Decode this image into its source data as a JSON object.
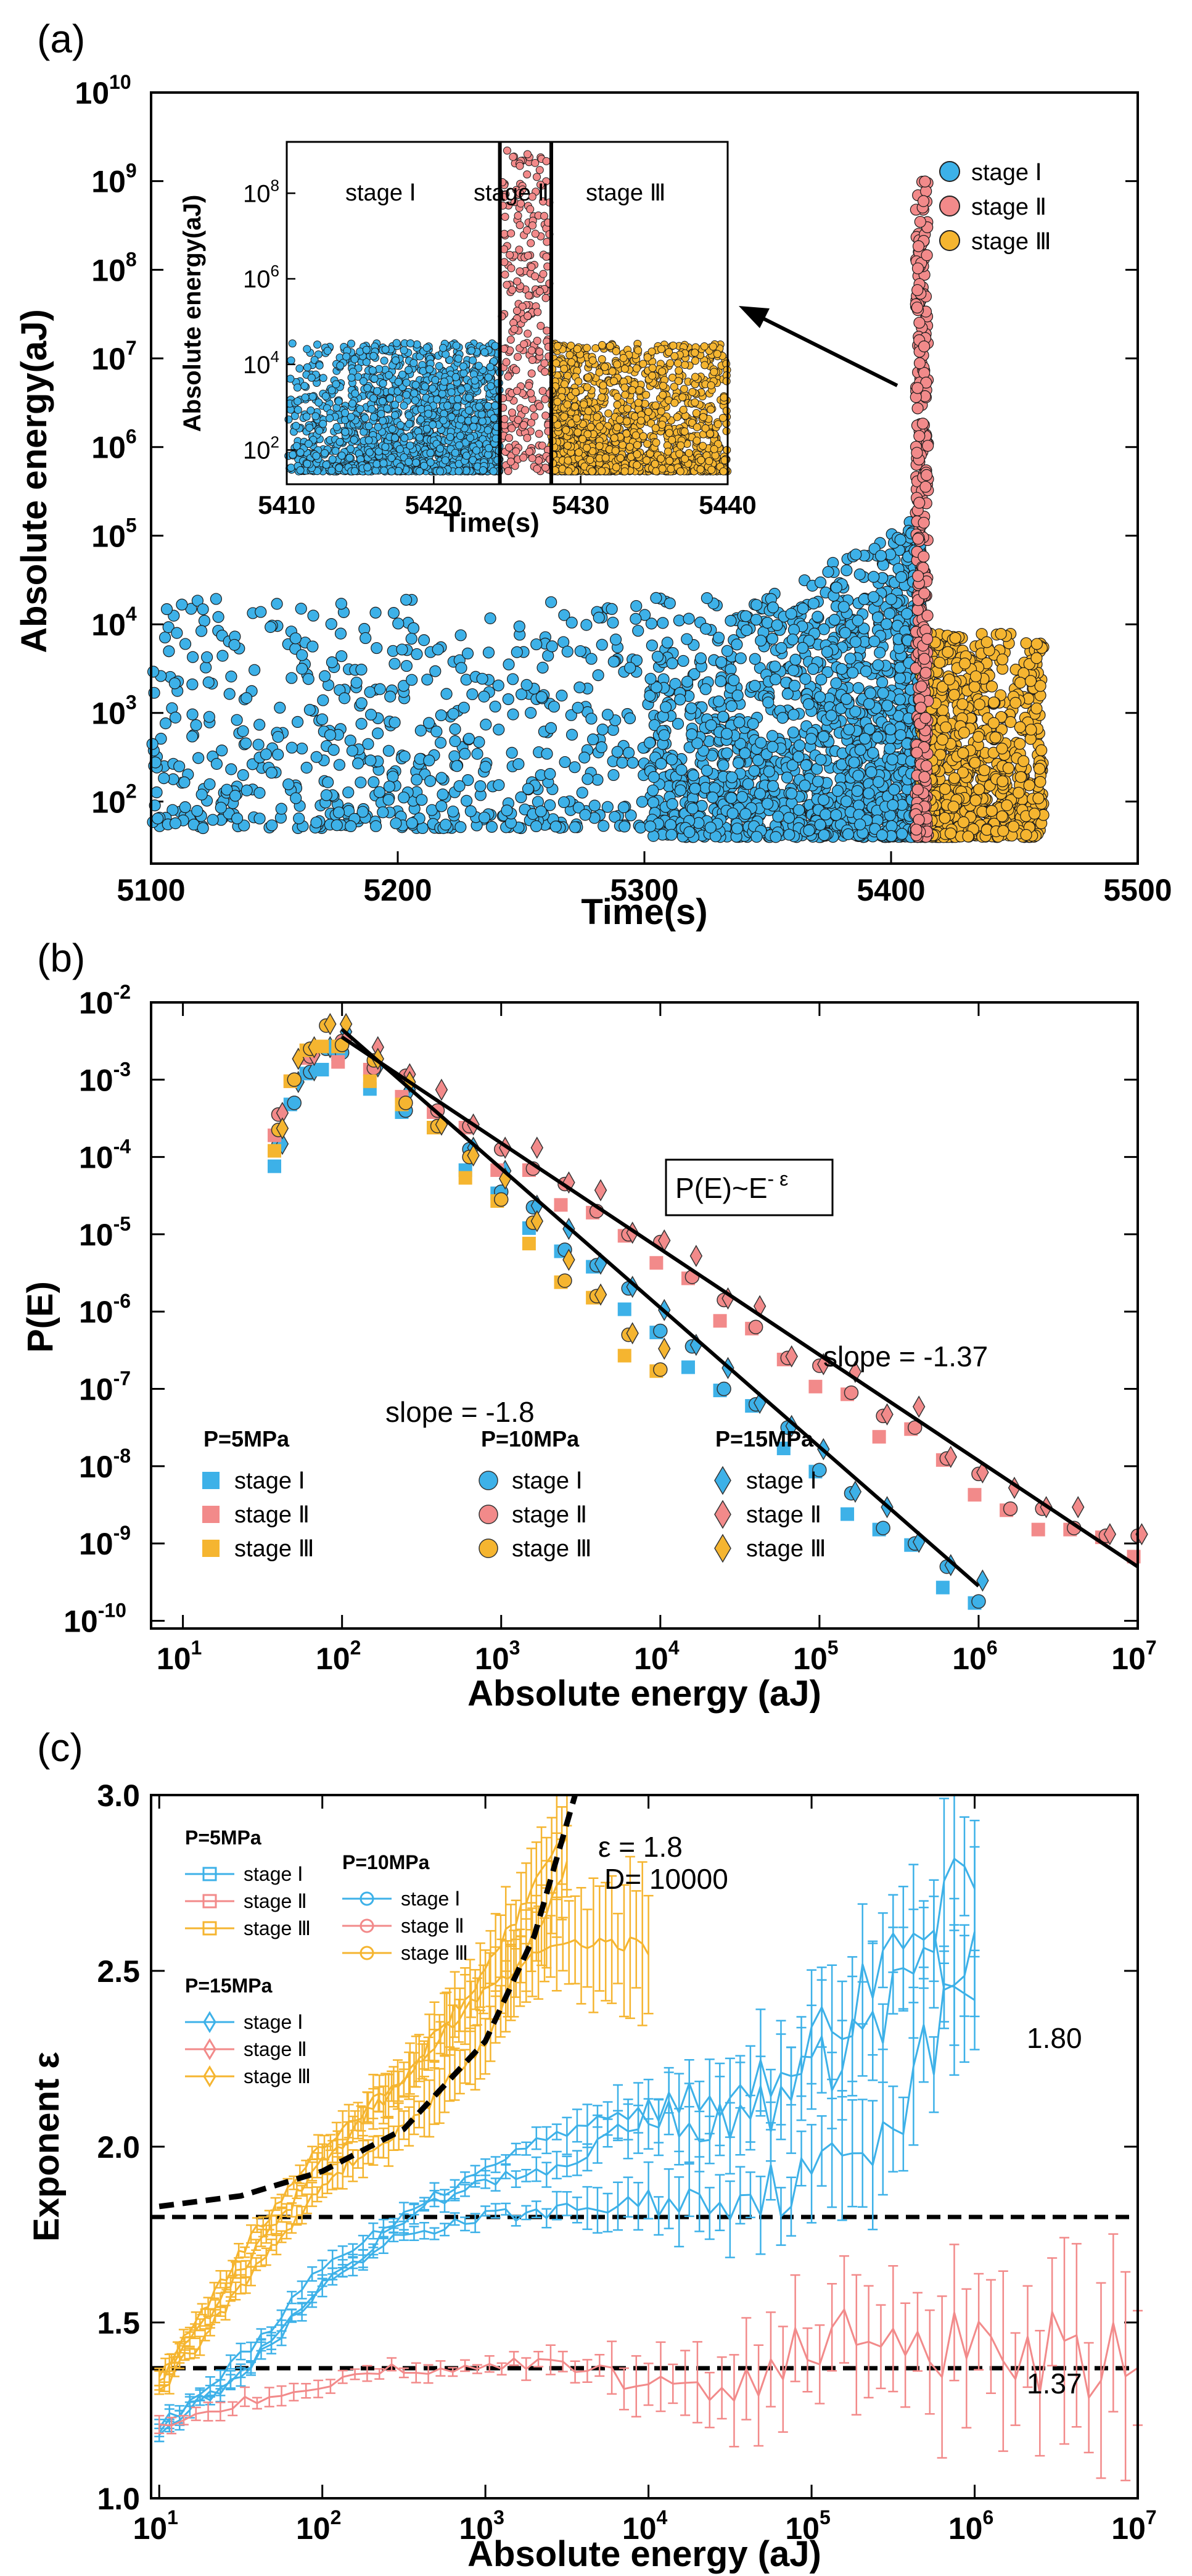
{
  "chart_data": [
    {
      "panel": "(a)",
      "type": "scatter",
      "xlabel": "Time(s)",
      "ylabel": "Absolute energy(aJ)",
      "xlim": [
        5100,
        5500
      ],
      "ylim_log10": [
        1.3,
        10
      ],
      "yscale": "log",
      "x_ticks": [
        "5100",
        "5200",
        "5300",
        "5400",
        "5500"
      ],
      "y_ticks": [
        {
          "base": "10",
          "exp": "2"
        },
        {
          "base": "10",
          "exp": "3"
        },
        {
          "base": "10",
          "exp": "4"
        },
        {
          "base": "10",
          "exp": "5"
        },
        {
          "base": "10",
          "exp": "6"
        },
        {
          "base": "10",
          "exp": "7"
        },
        {
          "base": "10",
          "exp": "8"
        },
        {
          "base": "10",
          "exp": "9"
        },
        {
          "base": "10",
          "exp": "10"
        }
      ],
      "legend": [
        {
          "label": "stage Ⅰ",
          "color": "#3db1e8"
        },
        {
          "label": "stage Ⅱ",
          "color": "#f28a8a"
        },
        {
          "label": "stage Ⅲ",
          "color": "#f5b530"
        }
      ],
      "series": [
        {
          "name": "stage Ⅰ",
          "x_range": [
            5100,
            5412
          ],
          "logE_range": [
            1.6,
            5.3
          ],
          "dense_near": 5405
        },
        {
          "name": "stage Ⅱ",
          "x_range": [
            5410,
            5415
          ],
          "logE_range": [
            1.6,
            9.0
          ]
        },
        {
          "name": "stage Ⅲ",
          "x_range": [
            5412,
            5462
          ],
          "logE_range": [
            1.6,
            4.0
          ]
        }
      ],
      "inset": {
        "xlabel": "Time(s)",
        "ylabel": "Absolute energy(aJ)",
        "xlim": [
          5410,
          5440
        ],
        "ylim_log10": [
          1.2,
          9.2
        ],
        "x_ticks": [
          "5410",
          "5420",
          "5430",
          "5440"
        ],
        "y_ticks": [
          {
            "base": "10",
            "exp": "2"
          },
          {
            "base": "10",
            "exp": "4"
          },
          {
            "base": "10",
            "exp": "6"
          },
          {
            "base": "10",
            "exp": "8"
          }
        ],
        "stage_labels": [
          "stage Ⅰ",
          "stage Ⅱ",
          "stage Ⅲ"
        ],
        "boundaries": [
          5424.5,
          5428
        ]
      }
    },
    {
      "panel": "(b)",
      "type": "scatter",
      "xlabel": "Absolute energy (aJ)",
      "ylabel": "P(E)",
      "xscale": "log",
      "yscale": "log",
      "xlim_log10": [
        0.8,
        7
      ],
      "ylim_log10": [
        -10.1,
        -2
      ],
      "x_ticks": [
        {
          "base": "10",
          "exp": "1"
        },
        {
          "base": "10",
          "exp": "2"
        },
        {
          "base": "10",
          "exp": "3"
        },
        {
          "base": "10",
          "exp": "4"
        },
        {
          "base": "10",
          "exp": "5"
        },
        {
          "base": "10",
          "exp": "6"
        },
        {
          "base": "10",
          "exp": "7"
        }
      ],
      "y_ticks": [
        {
          "base": "10",
          "exp": "-10"
        },
        {
          "base": "10",
          "exp": "-9"
        },
        {
          "base": "10",
          "exp": "-8"
        },
        {
          "base": "10",
          "exp": "-7"
        },
        {
          "base": "10",
          "exp": "-6"
        },
        {
          "base": "10",
          "exp": "-5"
        },
        {
          "base": "10",
          "exp": "-4"
        },
        {
          "base": "10",
          "exp": "-3"
        },
        {
          "base": "10",
          "exp": "-2"
        }
      ],
      "formula_base": "P(E)~E",
      "formula_exp": "- ε",
      "annotations": [
        "slope = -1.8",
        "slope = -1.37"
      ],
      "fit_lines": [
        {
          "slope": -1.8,
          "x_log10": [
            2,
            6
          ],
          "y_log10": [
            -2.35,
            -9.55
          ]
        },
        {
          "slope": -1.37,
          "x_log10": [
            2,
            7
          ],
          "y_log10": [
            -2.45,
            -9.3
          ]
        }
      ],
      "legend_groups": [
        {
          "title": "P=5MPa",
          "marker": "square",
          "items": [
            "stage Ⅰ",
            "stage Ⅱ",
            "stage Ⅲ"
          ]
        },
        {
          "title": "P=10MPa",
          "marker": "circle",
          "items": [
            "stage Ⅰ",
            "stage Ⅱ",
            "stage Ⅲ"
          ]
        },
        {
          "title": "P=15MPa",
          "marker": "diamond",
          "items": [
            "stage Ⅰ",
            "stage Ⅱ",
            "stage Ⅲ"
          ]
        }
      ],
      "stage_colors": [
        "#3db1e8",
        "#f28a8a",
        "#f5b530"
      ],
      "series": [
        {
          "name": "stage Ⅰ",
          "logE": [
            1.6,
            1.7,
            1.8,
            1.9,
            2.0,
            2.2,
            2.4,
            2.6,
            2.8,
            3.0,
            3.2,
            3.4,
            3.6,
            3.8,
            4.0,
            4.2,
            4.4,
            4.6,
            4.8,
            5.0,
            5.2,
            5.4,
            5.6,
            5.8,
            6.0
          ],
          "logP": [
            -3.9,
            -3.2,
            -2.9,
            -2.7,
            -2.6,
            -2.9,
            -3.3,
            -3.6,
            -4.0,
            -4.4,
            -4.7,
            -5.1,
            -5.4,
            -5.8,
            -6.2,
            -6.5,
            -6.9,
            -7.2,
            -7.6,
            -8.0,
            -8.4,
            -8.7,
            -9.0,
            -9.4,
            -9.7
          ]
        },
        {
          "name": "stage Ⅱ",
          "logE": [
            1.6,
            1.7,
            1.8,
            2.0,
            2.2,
            2.4,
            2.6,
            2.8,
            3.0,
            3.2,
            3.4,
            3.6,
            3.8,
            4.0,
            4.2,
            4.4,
            4.6,
            4.8,
            5.0,
            5.2,
            5.4,
            5.6,
            5.8,
            6.0,
            6.2,
            6.4,
            6.6,
            6.8,
            7.0
          ],
          "logP": [
            -3.5,
            -2.9,
            -2.7,
            -2.6,
            -2.8,
            -3.0,
            -3.3,
            -3.6,
            -4.0,
            -4.1,
            -4.4,
            -4.6,
            -5.0,
            -5.2,
            -5.5,
            -5.9,
            -6.1,
            -6.6,
            -6.8,
            -7.0,
            -7.4,
            -7.4,
            -7.9,
            -8.2,
            -8.5,
            -8.6,
            -8.7,
            -8.9,
            -9.0
          ]
        },
        {
          "name": "stage Ⅲ",
          "logE": [
            1.6,
            1.7,
            1.8,
            1.9,
            2.0,
            2.2,
            2.4,
            2.6,
            2.8,
            3.0,
            3.2,
            3.4,
            3.6,
            3.8,
            4.0
          ],
          "logP": [
            -3.7,
            -2.9,
            -2.6,
            -2.4,
            -2.5,
            -2.8,
            -3.2,
            -3.6,
            -4.1,
            -4.5,
            -4.9,
            -5.5,
            -5.8,
            -6.4,
            -6.7
          ]
        }
      ]
    },
    {
      "panel": "(c)",
      "type": "line",
      "xlabel": "Absolute energy (aJ)",
      "ylabel": "Exponent ε",
      "xscale": "log",
      "xlim_log10": [
        0.95,
        7
      ],
      "ylim": [
        1.0,
        3.0
      ],
      "x_ticks": [
        {
          "base": "10",
          "exp": "1"
        },
        {
          "base": "10",
          "exp": "2"
        },
        {
          "base": "10",
          "exp": "3"
        },
        {
          "base": "10",
          "exp": "4"
        },
        {
          "base": "10",
          "exp": "5"
        },
        {
          "base": "10",
          "exp": "6"
        },
        {
          "base": "10",
          "exp": "7"
        }
      ],
      "y_ticks": [
        "1.0",
        "1.5",
        "2.0",
        "2.5",
        "3.0"
      ],
      "reference_lines": [
        {
          "value": 1.8,
          "label": "1.80"
        },
        {
          "value": 1.37,
          "label": "1.37"
        }
      ],
      "fit_label": "ε = 1.8",
      "fit_d_label": "D= 10000",
      "legend_groups": [
        {
          "title": "P=5MPa",
          "marker": "square",
          "items": [
            "stage Ⅰ",
            "stage Ⅱ",
            "stage Ⅲ"
          ]
        },
        {
          "title": "P=10MPa",
          "marker": "circle",
          "items": [
            "stage Ⅰ",
            "stage Ⅱ",
            "stage Ⅲ"
          ]
        },
        {
          "title": "P=15MPa",
          "marker": "diamond",
          "items": [
            "stage Ⅰ",
            "stage Ⅱ",
            "stage Ⅲ"
          ]
        }
      ],
      "stage_colors": [
        "#3db1e8",
        "#f28a8a",
        "#f5b530"
      ],
      "series": [
        {
          "name": "stage Ⅰ (5MPa)",
          "logE": [
            1.0,
            1.5,
            2.0,
            2.5,
            3.0,
            3.5,
            4.0,
            4.5,
            5.0,
            5.5,
            6.0
          ],
          "eps": [
            1.2,
            1.35,
            1.6,
            1.75,
            1.8,
            1.82,
            1.84,
            1.86,
            1.9,
            2.1,
            2.5
          ]
        },
        {
          "name": "stage Ⅰ (10MPa)",
          "logE": [
            1.0,
            1.5,
            2.0,
            2.5,
            3.0,
            3.5,
            4.0,
            4.5,
            5.0,
            5.5,
            6.0
          ],
          "eps": [
            1.2,
            1.4,
            1.65,
            1.8,
            1.95,
            2.05,
            2.1,
            2.05,
            2.2,
            2.4,
            2.8
          ]
        },
        {
          "name": "stage Ⅰ (15MPa)",
          "logE": [
            1.0,
            1.5,
            2.0,
            2.5,
            3.0,
            3.5,
            4.0,
            4.5,
            5.0,
            5.5,
            6.0
          ],
          "eps": [
            1.2,
            1.35,
            1.6,
            1.8,
            1.9,
            1.95,
            2.1,
            2.15,
            2.3,
            2.5,
            2.6
          ]
        },
        {
          "name": "stage Ⅱ",
          "logE": [
            1.0,
            1.5,
            2.0,
            2.5,
            3.0,
            3.5,
            4.0,
            4.5,
            5.0,
            5.5,
            6.0,
            6.5,
            7.0
          ],
          "eps": [
            1.2,
            1.28,
            1.33,
            1.37,
            1.38,
            1.38,
            1.33,
            1.32,
            1.42,
            1.5,
            1.45,
            1.42,
            1.5
          ]
        },
        {
          "name": "stage Ⅲ (5MPa)",
          "logE": [
            1.0,
            1.5,
            2.0,
            2.5,
            3.0,
            3.5
          ],
          "eps": [
            1.3,
            1.6,
            1.9,
            2.05,
            2.3,
            2.8
          ]
        },
        {
          "name": "stage Ⅲ (10MPa)",
          "logE": [
            1.0,
            1.5,
            2.0,
            2.5,
            3.0,
            3.5,
            4.0
          ],
          "eps": [
            1.35,
            1.7,
            2.0,
            2.2,
            2.45,
            2.6,
            2.55
          ]
        },
        {
          "name": "stage Ⅲ (15MPa)",
          "logE": [
            1.0,
            1.5,
            2.0,
            2.5,
            3.0,
            3.5
          ],
          "eps": [
            1.33,
            1.65,
            1.95,
            2.2,
            2.5,
            2.9
          ]
        }
      ],
      "dashed_fit": {
        "logE": [
          1.0,
          1.5,
          2.0,
          2.5,
          3.0,
          3.3,
          3.55
        ],
        "eps": [
          1.83,
          1.86,
          1.93,
          2.05,
          2.3,
          2.6,
          3.0
        ]
      }
    }
  ]
}
